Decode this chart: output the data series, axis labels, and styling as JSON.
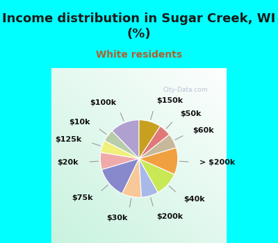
{
  "title": "Income distribution in Sugar Creek, WI\n(%)",
  "subtitle": "White residents",
  "title_color": "#1a1a1a",
  "subtitle_color": "#b06030",
  "bg_cyan": "#00ffff",
  "watermark": "City-Data.com",
  "labels": [
    "$100k",
    "$10k",
    "$125k",
    "$20k",
    "$75k",
    "$30k",
    "$200k",
    "$40k",
    "> $200k",
    "$60k",
    "$50k",
    "$150k"
  ],
  "values": [
    12,
    5,
    5,
    7,
    13,
    8,
    7,
    10,
    11,
    6,
    5,
    9
  ],
  "colors": [
    "#b0a0d0",
    "#b8ccaa",
    "#f0f07a",
    "#f0aaaa",
    "#8888cc",
    "#f8c898",
    "#a8b8e8",
    "#c8e855",
    "#f0a040",
    "#c8b89a",
    "#e07878",
    "#c8a020"
  ],
  "startangle": 90,
  "label_fontsize": 8,
  "title_fontsize": 13,
  "subtitle_fontsize": 10
}
